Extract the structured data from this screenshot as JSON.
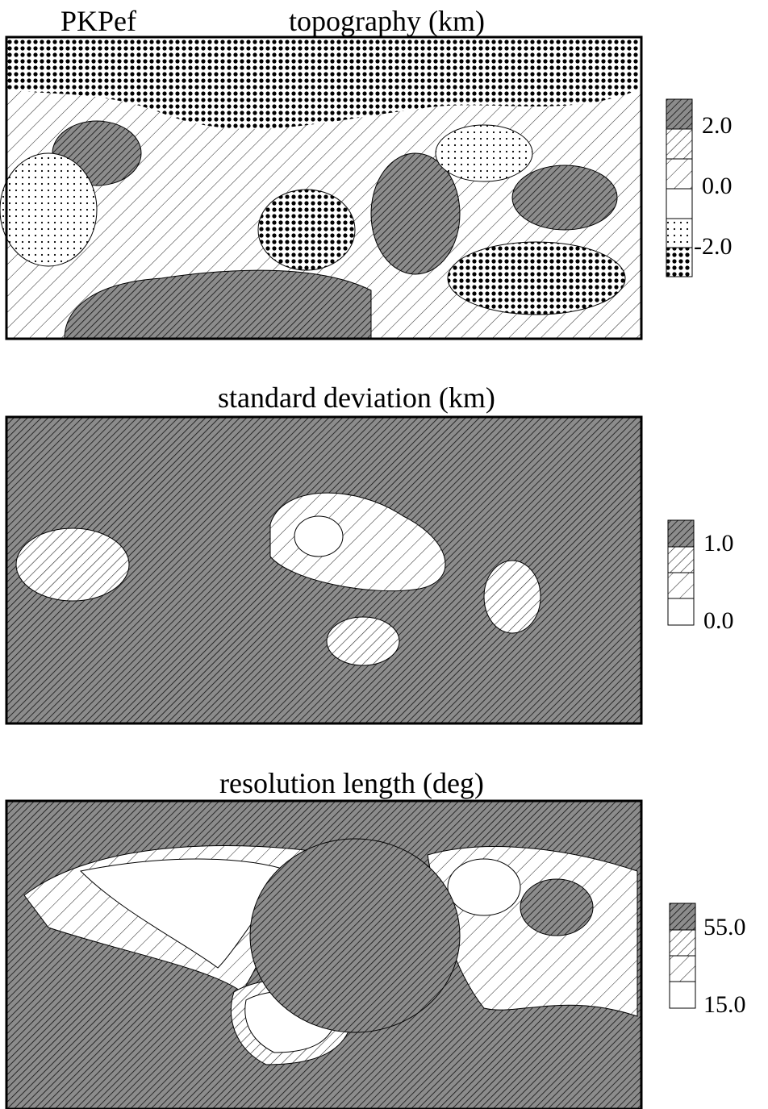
{
  "panels": [
    {
      "label": "PKPef",
      "title": "topography (km)",
      "legend": [
        "2.0",
        "0.0",
        "-2.0"
      ]
    },
    {
      "title": "standard deviation (km)",
      "legend": [
        "1.0",
        "0.0"
      ]
    },
    {
      "title": "resolution length (deg)",
      "legend": [
        "55.0",
        "15.0"
      ]
    }
  ]
}
